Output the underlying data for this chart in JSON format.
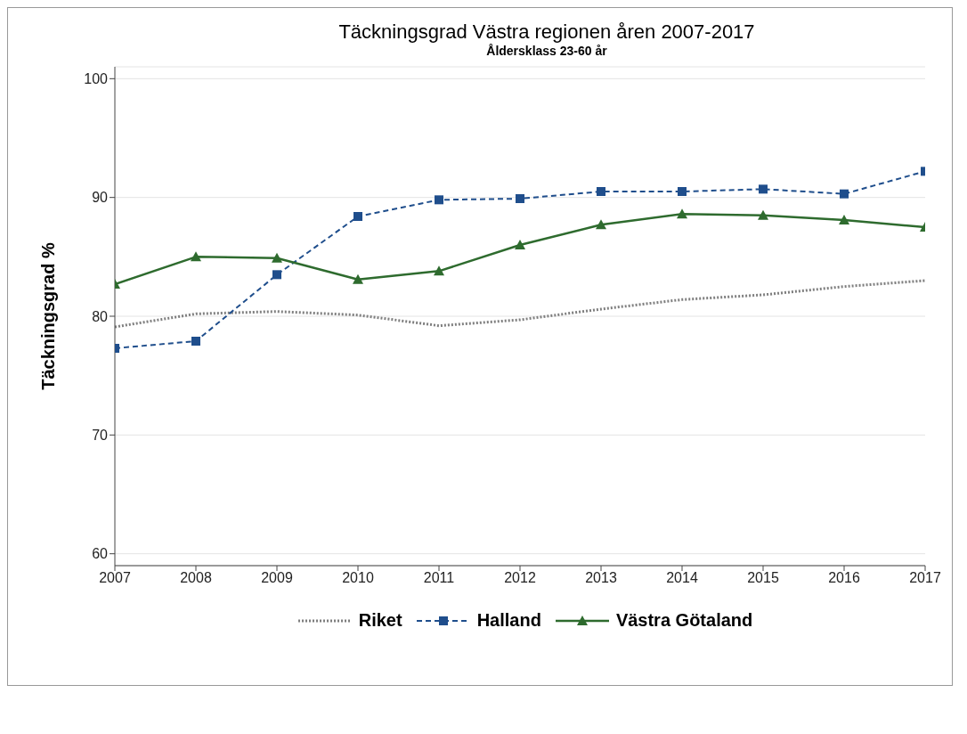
{
  "chart_data": {
    "type": "line",
    "title": "Täckningsgrad Västra regionen åren 2007-2017",
    "subtitle": "Åldersklass 23-60 år",
    "ylabel": "Täckningsgrad %",
    "x": [
      2007,
      2008,
      2009,
      2010,
      2011,
      2012,
      2013,
      2014,
      2015,
      2016,
      2017
    ],
    "xlim": [
      2007,
      2017
    ],
    "xticks": [
      2007,
      2008,
      2009,
      2010,
      2011,
      2012,
      2013,
      2014,
      2015,
      2016,
      2017
    ],
    "ylim": [
      59,
      101
    ],
    "yticks": [
      60,
      70,
      80,
      90,
      100
    ],
    "grid": "y",
    "legend": "bottom",
    "series": [
      {
        "name": "Riket",
        "color": "#7f7f7f",
        "line_style": "dotted",
        "marker": "none",
        "values": [
          79.1,
          80.2,
          80.4,
          80.1,
          79.2,
          79.7,
          80.6,
          81.4,
          81.8,
          82.5,
          83.0
        ]
      },
      {
        "name": "Halland",
        "color": "#1f4e8c",
        "line_style": "dashed",
        "marker": "square",
        "values": [
          77.3,
          77.9,
          83.5,
          88.4,
          89.8,
          89.9,
          90.5,
          90.5,
          90.7,
          90.3,
          92.2
        ]
      },
      {
        "name": "Västra Götaland",
        "color": "#2e6b2e",
        "line_style": "solid",
        "marker": "triangle",
        "values": [
          82.7,
          85.0,
          84.9,
          83.1,
          83.8,
          86.0,
          87.7,
          88.6,
          88.5,
          88.1,
          87.5
        ]
      }
    ]
  }
}
